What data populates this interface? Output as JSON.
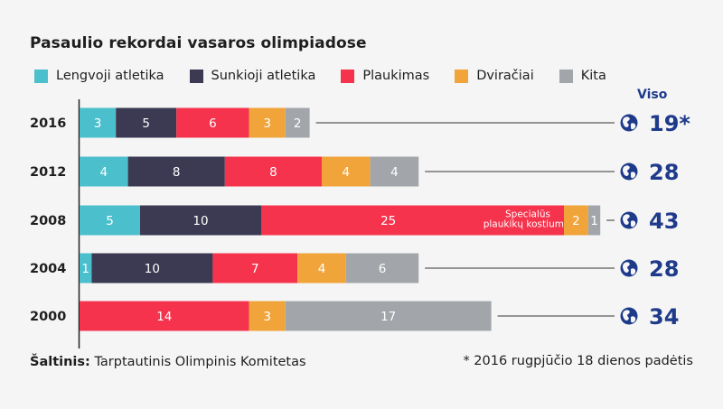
{
  "title": "Pasaulio rekordai vasaros olimpiadose",
  "legend": [
    {
      "label": "Lengvoji atletika",
      "color": "#4bbfcc"
    },
    {
      "label": "Sunkioji atletika",
      "color": "#3b3a52"
    },
    {
      "label": "Plaukimas",
      "color": "#f5334d"
    },
    {
      "label": "Dviračiai",
      "color": "#f0a43a"
    },
    {
      "label": "Kita",
      "color": "#a2a6aa"
    }
  ],
  "total_header": "Viso",
  "footer": {
    "source_label": "Šaltinis:",
    "source_text": "Tarptautinis Olimpinis Komitetas",
    "note": "* 2016 rugpjūčio 18 dienos padėtis"
  },
  "globe_icon": "globe-icon",
  "chart_data": {
    "type": "bar",
    "orientation": "horizontal",
    "stacked": true,
    "title": "Pasaulio rekordai vasaros olimpiadose",
    "categories": [
      "2016",
      "2012",
      "2008",
      "2004",
      "2000"
    ],
    "series": [
      {
        "name": "Lengvoji atletika",
        "values": [
          3,
          4,
          5,
          1,
          0
        ]
      },
      {
        "name": "Sunkioji atletika",
        "values": [
          5,
          8,
          10,
          10,
          0
        ]
      },
      {
        "name": "Plaukimas",
        "values": [
          6,
          8,
          25,
          7,
          14
        ]
      },
      {
        "name": "Dviračiai",
        "values": [
          3,
          4,
          2,
          4,
          3
        ]
      },
      {
        "name": "Kita",
        "values": [
          2,
          4,
          1,
          6,
          17
        ]
      }
    ],
    "totals": [
      "19*",
      "28",
      "43",
      "28",
      "34"
    ],
    "annotations": [
      {
        "category": "2008",
        "series": "Plaukimas",
        "text_lines": [
          "Specialūs",
          "plaukikų kostiumai"
        ]
      }
    ],
    "legend_position": "top",
    "grid": false
  }
}
